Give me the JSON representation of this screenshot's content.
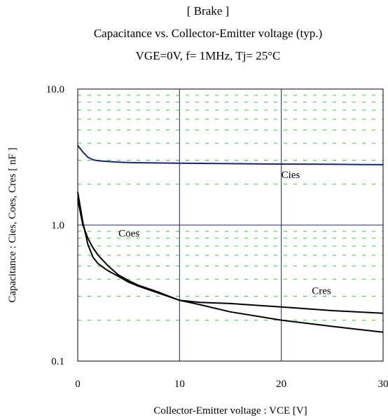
{
  "chart_data": {
    "type": "line",
    "title": "[ Brake ]",
    "subtitle": "Capacitance  vs.  Collector-Emitter voltage  (typ.)",
    "conditions": "VGE=0V,   f= 1MHz,   Tj= 25°C",
    "xlabel": "Collector-Emitter voltage : VCE [V]",
    "ylabel": "Capacitance  :  Cies, Coes, Cres  [ nF ]",
    "xlim": [
      0,
      30
    ],
    "ylim": [
      0.1,
      10
    ],
    "yscale": "log",
    "x_ticks": [
      "0",
      "10",
      "20",
      "30"
    ],
    "y_ticks": [
      "0.1",
      "1.0",
      "10.0"
    ],
    "grid": true,
    "series": [
      {
        "name": "Cies",
        "color": "#1a237e",
        "x": [
          0,
          0.5,
          1,
          1.5,
          2,
          3,
          4,
          5,
          7,
          10,
          15,
          20,
          25,
          30
        ],
        "y": [
          3.85,
          3.45,
          3.15,
          3.02,
          2.97,
          2.93,
          2.9,
          2.88,
          2.87,
          2.85,
          2.83,
          2.81,
          2.8,
          2.78
        ]
      },
      {
        "name": "Coes",
        "color": "#000000",
        "x": [
          0,
          0.5,
          1,
          1.5,
          2,
          3,
          4,
          5,
          6,
          8,
          10,
          12,
          15,
          20,
          25,
          30
        ],
        "y": [
          1.55,
          1.0,
          0.8,
          0.68,
          0.6,
          0.5,
          0.43,
          0.39,
          0.36,
          0.32,
          0.28,
          0.27,
          0.265,
          0.25,
          0.235,
          0.225
        ]
      },
      {
        "name": "Cres",
        "color": "#000000",
        "x": [
          0,
          0.5,
          1,
          1.5,
          2,
          3,
          4,
          5,
          6,
          8,
          10,
          12,
          15,
          20,
          25,
          30
        ],
        "y": [
          1.75,
          1.05,
          0.72,
          0.58,
          0.52,
          0.46,
          0.42,
          0.38,
          0.355,
          0.315,
          0.28,
          0.26,
          0.23,
          0.2,
          0.18,
          0.163
        ]
      }
    ],
    "annotations": [
      {
        "text": "Cies",
        "x": 20,
        "y": 2.35
      },
      {
        "text": "Coes",
        "x": 4,
        "y": 0.87
      },
      {
        "text": "Cres",
        "x": 23,
        "y": 0.33
      }
    ]
  }
}
